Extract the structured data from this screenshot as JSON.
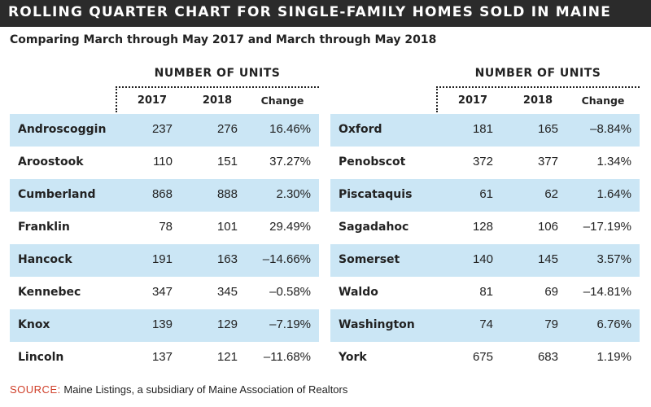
{
  "title": "ROLLING QUARTER CHART FOR SINGLE-FAMILY HOMES SOLD IN MAINE",
  "subtitle": "Comparing March through May 2017 and March through May 2018",
  "units_header": "NUMBER OF UNITS",
  "columns": {
    "y2017": "2017",
    "y2018": "2018",
    "change": "Change"
  },
  "left_rows": [
    {
      "county": "Androscoggin",
      "y2017": "237",
      "y2018": "276",
      "change": "16.46%"
    },
    {
      "county": "Aroostook",
      "y2017": "110",
      "y2018": "151",
      "change": "37.27%"
    },
    {
      "county": "Cumberland",
      "y2017": "868",
      "y2018": "888",
      "change": "2.30%"
    },
    {
      "county": "Franklin",
      "y2017": "78",
      "y2018": "101",
      "change": "29.49%"
    },
    {
      "county": "Hancock",
      "y2017": "191",
      "y2018": "163",
      "change": "–14.66%"
    },
    {
      "county": "Kennebec",
      "y2017": "347",
      "y2018": "345",
      "change": "–0.58%"
    },
    {
      "county": "Knox",
      "y2017": "139",
      "y2018": "129",
      "change": "–7.19%"
    },
    {
      "county": "Lincoln",
      "y2017": "137",
      "y2018": "121",
      "change": "–11.68%"
    }
  ],
  "right_rows": [
    {
      "county": "Oxford",
      "y2017": "181",
      "y2018": "165",
      "change": "–8.84%"
    },
    {
      "county": "Penobscot",
      "y2017": "372",
      "y2018": "377",
      "change": "1.34%"
    },
    {
      "county": "Piscataquis",
      "y2017": "61",
      "y2018": "62",
      "change": "1.64%"
    },
    {
      "county": "Sagadahoc",
      "y2017": "128",
      "y2018": "106",
      "change": "–17.19%"
    },
    {
      "county": "Somerset",
      "y2017": "140",
      "y2018": "145",
      "change": "3.57%"
    },
    {
      "county": "Waldo",
      "y2017": "81",
      "y2018": "69",
      "change": "–14.81%"
    },
    {
      "county": "Washington",
      "y2017": "74",
      "y2018": "79",
      "change": "6.76%"
    },
    {
      "county": "York",
      "y2017": "675",
      "y2018": "683",
      "change": "1.19%"
    }
  ],
  "source_label": "SOURCE:",
  "source_text": "Maine Listings, a subsidiary of Maine Association of Realtors",
  "colors": {
    "title_bar": "#2b2b2b",
    "row_shade": "#cbe6f5",
    "source_label": "#d0402a"
  }
}
